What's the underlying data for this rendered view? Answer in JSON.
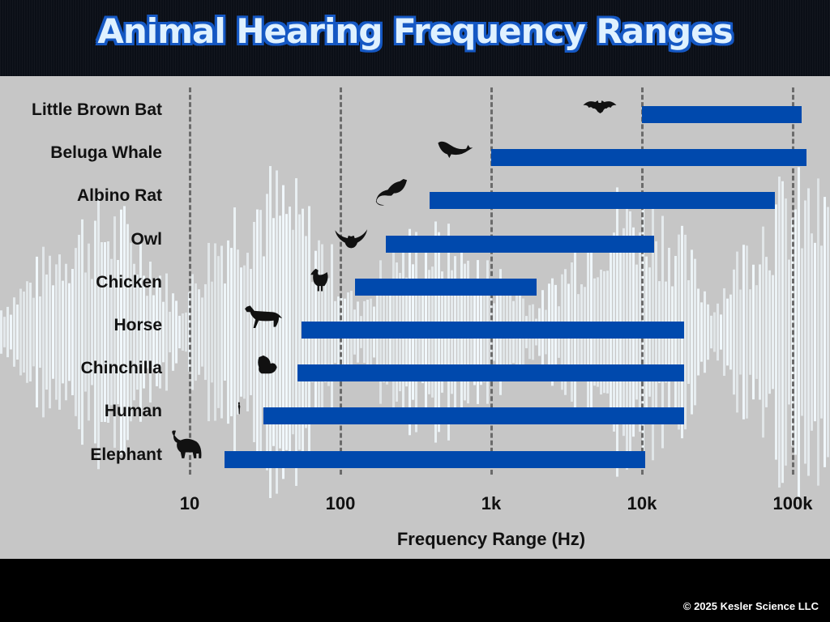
{
  "header": {
    "title": "Animal Hearing Frequency Ranges"
  },
  "footer": {
    "copyright": "© 2025 Kesler Science LLC"
  },
  "chart_data": {
    "type": "bar",
    "orientation": "horizontal-range",
    "title": "Animal Hearing Frequency Ranges",
    "xlabel": "Frequency Range (Hz)",
    "ylabel": "",
    "xscale": "log",
    "xlim": [
      10,
      100000
    ],
    "x_ticks": [
      10,
      100,
      1000,
      10000,
      100000
    ],
    "x_tick_labels": [
      "10",
      "100",
      "1k",
      "10k",
      "100k"
    ],
    "grid": "vertical dashed at ticks",
    "legend": "none",
    "bar_color": "#0049ad",
    "categories": [
      "Little Brown Bat",
      "Beluga Whale",
      "Albino Rat",
      "Owl",
      "Chicken",
      "Horse",
      "Chinchilla",
      "Human",
      "Elephant"
    ],
    "series": [
      {
        "name": "low_hz",
        "values": [
          10000,
          1000,
          390,
          200,
          125,
          55,
          52,
          31,
          17
        ]
      },
      {
        "name": "high_hz",
        "values": [
          115000,
          123000,
          76000,
          12000,
          2000,
          19000,
          19000,
          19000,
          10500
        ]
      }
    ],
    "icons": [
      "bat-icon",
      "whale-icon",
      "rat-icon",
      "owl-icon",
      "chicken-icon",
      "horse-icon",
      "chinchilla-icon",
      "human-icon",
      "elephant-icon"
    ]
  }
}
